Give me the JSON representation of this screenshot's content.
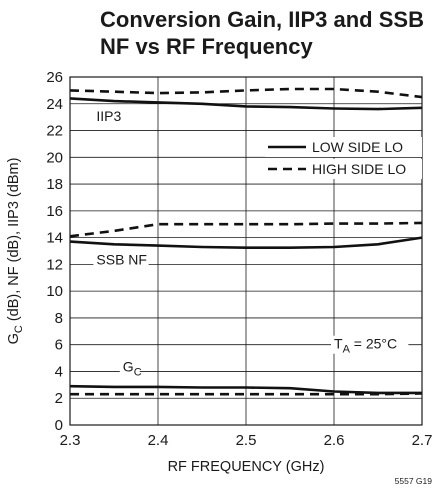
{
  "chart_data": {
    "type": "line",
    "title_lines": [
      "Conversion Gain, IIP3 and SSB",
      "NF vs RF Frequency"
    ],
    "xlabel": "RF FREQUENCY (GHz)",
    "ylabel": "G_C (dB), NF (dB), IIP3 (dBm)",
    "xlim": [
      2.3,
      2.7
    ],
    "ylim": [
      0,
      26
    ],
    "x_ticks": [
      "2.3",
      "2.4",
      "2.5",
      "2.6",
      "2.7"
    ],
    "y_ticks": [
      "0",
      "2",
      "4",
      "6",
      "8",
      "10",
      "12",
      "14",
      "16",
      "18",
      "20",
      "22",
      "24",
      "26"
    ],
    "grid": true,
    "legend": {
      "position": "upper-right",
      "entries": [
        {
          "label": "LOW SIDE LO",
          "style": "solid"
        },
        {
          "label": "HIGH SIDE LO",
          "style": "dashed"
        }
      ]
    },
    "annotations": [
      {
        "text": "IIP3",
        "x": 2.33,
        "y": 22.7
      },
      {
        "text": "SSB NF",
        "x": 2.33,
        "y": 12.0
      },
      {
        "text": "G",
        "sub": "C",
        "x": 2.36,
        "y": 4.0
      },
      {
        "text": "T",
        "sub": "A",
        "suffix": " = 25°C",
        "x": 2.6,
        "y": 5.7
      }
    ],
    "figure_code": "5557 G19",
    "series": [
      {
        "group": "IIP3",
        "name": "LOW SIDE LO",
        "style": "solid",
        "x": [
          2.3,
          2.35,
          2.4,
          2.45,
          2.5,
          2.55,
          2.6,
          2.65,
          2.7
        ],
        "y": [
          24.4,
          24.2,
          24.1,
          24.0,
          23.8,
          23.75,
          23.65,
          23.6,
          23.7
        ]
      },
      {
        "group": "IIP3",
        "name": "HIGH SIDE LO",
        "style": "dashed",
        "x": [
          2.3,
          2.35,
          2.4,
          2.45,
          2.5,
          2.55,
          2.6,
          2.65,
          2.7
        ],
        "y": [
          25.0,
          24.9,
          24.8,
          24.85,
          25.0,
          25.1,
          25.1,
          24.9,
          24.5
        ]
      },
      {
        "group": "SSB NF",
        "name": "LOW SIDE LO",
        "style": "solid",
        "x": [
          2.3,
          2.35,
          2.4,
          2.45,
          2.5,
          2.55,
          2.6,
          2.65,
          2.7
        ],
        "y": [
          13.7,
          13.5,
          13.4,
          13.3,
          13.25,
          13.25,
          13.3,
          13.5,
          14.0
        ]
      },
      {
        "group": "SSB NF",
        "name": "HIGH SIDE LO",
        "style": "dashed",
        "x": [
          2.3,
          2.35,
          2.4,
          2.45,
          2.5,
          2.55,
          2.6,
          2.65,
          2.7
        ],
        "y": [
          14.1,
          14.5,
          15.0,
          15.0,
          15.0,
          15.0,
          15.05,
          15.05,
          15.1
        ]
      },
      {
        "group": "G_C",
        "name": "LOW SIDE LO",
        "style": "solid",
        "x": [
          2.3,
          2.35,
          2.4,
          2.45,
          2.5,
          2.55,
          2.6,
          2.65,
          2.7
        ],
        "y": [
          2.9,
          2.85,
          2.85,
          2.8,
          2.8,
          2.75,
          2.5,
          2.4,
          2.4
        ]
      },
      {
        "group": "G_C",
        "name": "HIGH SIDE LO",
        "style": "dashed",
        "x": [
          2.3,
          2.35,
          2.4,
          2.45,
          2.5,
          2.55,
          2.6,
          2.65,
          2.7
        ],
        "y": [
          2.3,
          2.3,
          2.3,
          2.3,
          2.3,
          2.3,
          2.3,
          2.3,
          2.35
        ]
      }
    ]
  }
}
